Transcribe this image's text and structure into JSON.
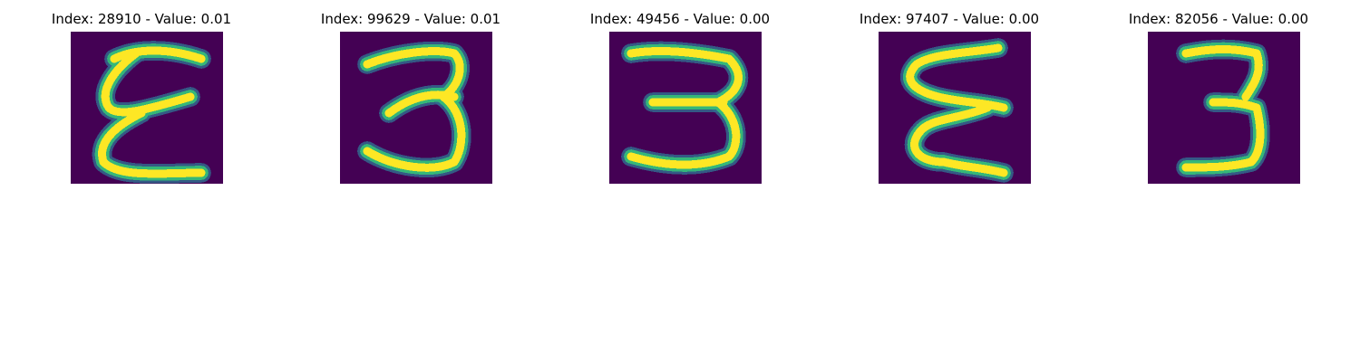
{
  "figure": {
    "panels": [
      {
        "index": "28910",
        "value": "0.01",
        "title": "Index: 28910 - Value: 0.01",
        "digit": "3",
        "variant": "A"
      },
      {
        "index": "99629",
        "value": "0.01",
        "title": "Index: 99629 - Value: 0.01",
        "digit": "3",
        "variant": "B"
      },
      {
        "index": "49456",
        "value": "0.00",
        "title": "Index: 49456 - Value: 0.00",
        "digit": "3",
        "variant": "C"
      },
      {
        "index": "97407",
        "value": "0.00",
        "title": "Index: 97407 - Value: 0.00",
        "digit": "3",
        "variant": "D"
      },
      {
        "index": "82056",
        "value": "0.00",
        "title": "Index: 82056 - Value: 0.00",
        "digit": "3",
        "variant": "E"
      }
    ]
  },
  "colors": {
    "background": "#440154",
    "stroke_core": "#fde725",
    "stroke_mid": "#35b779",
    "stroke_edge": "#31688e"
  }
}
